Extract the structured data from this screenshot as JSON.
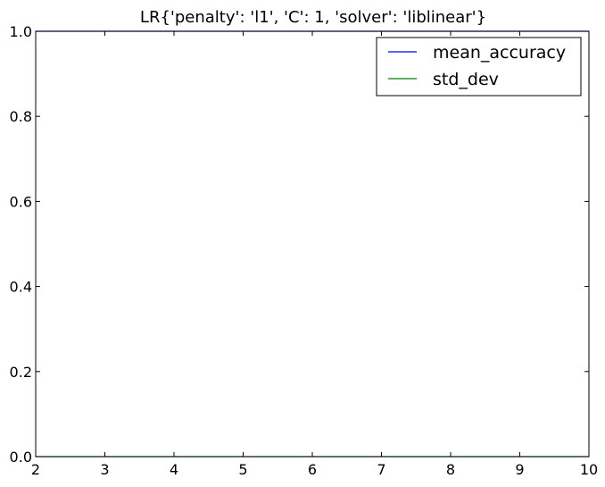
{
  "chart_data": {
    "type": "line",
    "title": "LR{'penalty': 'l1', 'C': 1, 'solver': 'liblinear'}",
    "xlabel": "",
    "ylabel": "",
    "xlim": [
      2,
      10
    ],
    "ylim": [
      0.0,
      1.0
    ],
    "x_ticks": [
      2,
      3,
      4,
      5,
      6,
      7,
      8,
      9,
      10
    ],
    "y_ticks": [
      "0.0",
      "0.2",
      "0.4",
      "0.6",
      "0.8",
      "1.0"
    ],
    "y_tick_values": [
      0.0,
      0.2,
      0.4,
      0.6,
      0.8,
      1.0
    ],
    "grid": false,
    "legend_position": "top-right",
    "series": [
      {
        "name": "mean_accuracy",
        "color": "#0000ff",
        "x": [
          2,
          3,
          4,
          5,
          6,
          7,
          8,
          9,
          10
        ],
        "values": [
          1.0,
          1.0,
          1.0,
          1.0,
          1.0,
          1.0,
          1.0,
          1.0,
          1.0
        ]
      },
      {
        "name": "std_dev",
        "color": "#008000",
        "x": [
          2,
          3,
          4,
          5,
          6,
          7,
          8,
          9,
          10
        ],
        "values": [
          0.0,
          0.0,
          0.0,
          0.0,
          0.0,
          0.0,
          0.0,
          0.0,
          0.0
        ]
      }
    ]
  }
}
